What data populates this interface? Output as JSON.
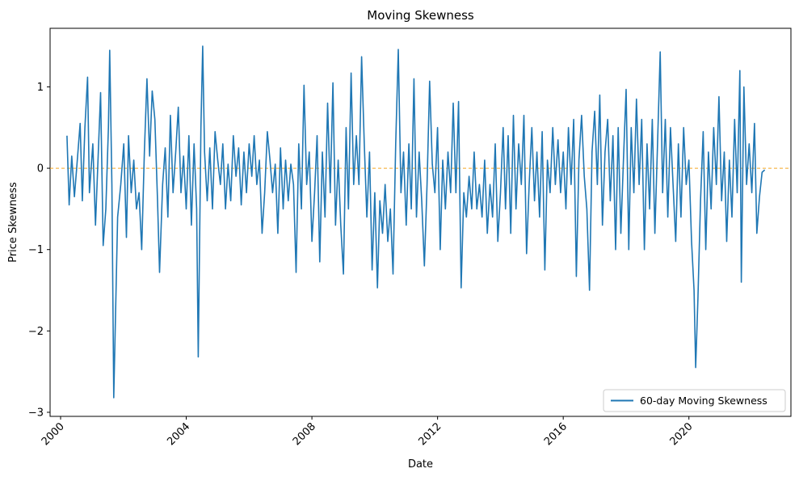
{
  "chart_data": {
    "type": "line",
    "title": "Moving Skewness",
    "xlabel": "Date",
    "ylabel": "Price Skewness",
    "xlim": [
      "1999-09-01",
      "2023-04-01"
    ],
    "ylim": [
      -3.05,
      1.72
    ],
    "x_ticks": [
      {
        "date": "2000-01-01",
        "label": "2000"
      },
      {
        "date": "2004-01-01",
        "label": "2004"
      },
      {
        "date": "2008-01-01",
        "label": "2008"
      },
      {
        "date": "2012-01-01",
        "label": "2012"
      },
      {
        "date": "2016-01-01",
        "label": "2016"
      },
      {
        "date": "2020-01-01",
        "label": "2020"
      }
    ],
    "y_ticks": [
      {
        "value": 1,
        "label": "1"
      },
      {
        "value": 0,
        "label": "0"
      },
      {
        "value": -1,
        "label": "−1"
      },
      {
        "value": -2,
        "label": "−2"
      },
      {
        "value": -3,
        "label": "−3"
      }
    ],
    "grid": false,
    "legend_position": "lower-right",
    "reference_line": {
      "y": 0,
      "style": "dashed",
      "color": "#f5a623"
    },
    "series": [
      {
        "name": "60-day Moving Skewness",
        "color": "#1f77b4",
        "points": [
          [
            "2000-03-15",
            0.4
          ],
          [
            "2000-04-10",
            -0.45
          ],
          [
            "2000-05-10",
            0.15
          ],
          [
            "2000-06-10",
            -0.35
          ],
          [
            "2000-07-10",
            0.05
          ],
          [
            "2000-08-15",
            0.55
          ],
          [
            "2000-09-10",
            -0.4
          ],
          [
            "2000-10-10",
            0.5
          ],
          [
            "2000-11-10",
            1.12
          ],
          [
            "2000-12-01",
            -0.3
          ],
          [
            "2001-01-10",
            0.3
          ],
          [
            "2001-02-10",
            -0.7
          ],
          [
            "2001-03-15",
            0.2
          ],
          [
            "2001-04-10",
            0.93
          ],
          [
            "2001-05-10",
            -0.95
          ],
          [
            "2001-06-10",
            -0.5
          ],
          [
            "2001-07-10",
            0.5
          ],
          [
            "2001-07-25",
            1.45
          ],
          [
            "2001-08-20",
            -0.2
          ],
          [
            "2001-09-10",
            -2.82
          ],
          [
            "2001-10-01",
            -1.8
          ],
          [
            "2001-10-25",
            -0.6
          ],
          [
            "2001-12-01",
            -0.2
          ],
          [
            "2002-01-05",
            0.3
          ],
          [
            "2002-02-05",
            -0.85
          ],
          [
            "2002-03-01",
            0.4
          ],
          [
            "2002-04-01",
            -0.3
          ],
          [
            "2002-05-01",
            0.1
          ],
          [
            "2002-06-01",
            -0.5
          ],
          [
            "2002-07-01",
            -0.3
          ],
          [
            "2002-08-01",
            -1.0
          ],
          [
            "2002-09-01",
            0.2
          ],
          [
            "2002-10-01",
            1.1
          ],
          [
            "2002-11-01",
            0.15
          ],
          [
            "2002-12-01",
            0.95
          ],
          [
            "2003-01-01",
            0.6
          ],
          [
            "2003-02-01",
            -0.4
          ],
          [
            "2003-02-25",
            -1.28
          ],
          [
            "2003-04-01",
            -0.2
          ],
          [
            "2003-05-01",
            0.25
          ],
          [
            "2003-06-01",
            -0.6
          ],
          [
            "2003-07-01",
            0.65
          ],
          [
            "2003-08-01",
            -0.3
          ],
          [
            "2003-09-01",
            0.2
          ],
          [
            "2003-10-01",
            0.75
          ],
          [
            "2003-11-01",
            -0.3
          ],
          [
            "2003-12-01",
            0.15
          ],
          [
            "2004-01-01",
            -0.5
          ],
          [
            "2004-02-01",
            0.4
          ],
          [
            "2004-03-01",
            -0.7
          ],
          [
            "2004-04-01",
            0.3
          ],
          [
            "2004-05-01",
            -0.5
          ],
          [
            "2004-05-20",
            -2.32
          ],
          [
            "2004-06-20",
            0.5
          ],
          [
            "2004-07-10",
            1.5
          ],
          [
            "2004-08-01",
            0.2
          ],
          [
            "2004-09-01",
            -0.4
          ],
          [
            "2004-10-01",
            0.25
          ],
          [
            "2004-11-01",
            -0.5
          ],
          [
            "2004-12-01",
            0.45
          ],
          [
            "2005-01-01",
            0.1
          ],
          [
            "2005-02-01",
            -0.2
          ],
          [
            "2005-03-01",
            0.3
          ],
          [
            "2005-04-01",
            -0.5
          ],
          [
            "2005-05-01",
            0.05
          ],
          [
            "2005-06-01",
            -0.4
          ],
          [
            "2005-07-01",
            0.4
          ],
          [
            "2005-08-01",
            -0.1
          ],
          [
            "2005-09-01",
            0.25
          ],
          [
            "2005-10-01",
            -0.45
          ],
          [
            "2005-11-01",
            0.2
          ],
          [
            "2005-12-01",
            -0.3
          ],
          [
            "2006-01-01",
            0.3
          ],
          [
            "2006-02-01",
            -0.1
          ],
          [
            "2006-03-01",
            0.4
          ],
          [
            "2006-04-01",
            -0.2
          ],
          [
            "2006-05-01",
            0.1
          ],
          [
            "2006-06-01",
            -0.8
          ],
          [
            "2006-07-01",
            -0.3
          ],
          [
            "2006-08-01",
            0.45
          ],
          [
            "2006-09-01",
            0.1
          ],
          [
            "2006-10-01",
            -0.3
          ],
          [
            "2006-11-01",
            0.05
          ],
          [
            "2006-12-01",
            -0.8
          ],
          [
            "2007-01-01",
            0.25
          ],
          [
            "2007-02-01",
            -0.5
          ],
          [
            "2007-03-01",
            0.1
          ],
          [
            "2007-04-01",
            -0.4
          ],
          [
            "2007-05-01",
            0.05
          ],
          [
            "2007-06-01",
            -0.2
          ],
          [
            "2007-07-01",
            -1.28
          ],
          [
            "2007-08-01",
            0.3
          ],
          [
            "2007-09-01",
            -0.5
          ],
          [
            "2007-10-01",
            1.02
          ],
          [
            "2007-11-01",
            -0.2
          ],
          [
            "2007-12-01",
            0.2
          ],
          [
            "2008-01-01",
            -0.9
          ],
          [
            "2008-02-01",
            -0.3
          ],
          [
            "2008-03-01",
            0.4
          ],
          [
            "2008-04-01",
            -1.15
          ],
          [
            "2008-05-01",
            0.2
          ],
          [
            "2008-06-01",
            -0.6
          ],
          [
            "2008-07-01",
            0.8
          ],
          [
            "2008-08-01",
            -0.3
          ],
          [
            "2008-09-01",
            1.05
          ],
          [
            "2008-10-01",
            -0.7
          ],
          [
            "2008-11-01",
            0.1
          ],
          [
            "2008-12-01",
            -0.7
          ],
          [
            "2009-01-01",
            -1.3
          ],
          [
            "2009-02-01",
            0.5
          ],
          [
            "2009-03-01",
            -0.5
          ],
          [
            "2009-04-01",
            1.17
          ],
          [
            "2009-05-01",
            -0.2
          ],
          [
            "2009-06-01",
            0.4
          ],
          [
            "2009-07-01",
            -0.2
          ],
          [
            "2009-08-01",
            1.37
          ],
          [
            "2009-09-01",
            0.3
          ],
          [
            "2009-10-01",
            -0.6
          ],
          [
            "2009-11-01",
            0.2
          ],
          [
            "2009-12-01",
            -1.25
          ],
          [
            "2010-01-01",
            -0.3
          ],
          [
            "2010-02-01",
            -1.47
          ],
          [
            "2010-03-01",
            -0.4
          ],
          [
            "2010-04-01",
            -0.8
          ],
          [
            "2010-05-01",
            -0.2
          ],
          [
            "2010-06-01",
            -0.9
          ],
          [
            "2010-07-01",
            -0.5
          ],
          [
            "2010-08-01",
            -1.3
          ],
          [
            "2010-09-01",
            0.3
          ],
          [
            "2010-10-01",
            1.46
          ],
          [
            "2010-11-01",
            -0.3
          ],
          [
            "2010-12-01",
            0.2
          ],
          [
            "2011-01-01",
            -0.7
          ],
          [
            "2011-02-01",
            0.3
          ],
          [
            "2011-03-01",
            -0.5
          ],
          [
            "2011-04-01",
            1.1
          ],
          [
            "2011-05-01",
            -0.6
          ],
          [
            "2011-06-01",
            0.2
          ],
          [
            "2011-07-01",
            -0.4
          ],
          [
            "2011-08-01",
            -1.2
          ],
          [
            "2011-09-01",
            -0.2
          ],
          [
            "2011-10-01",
            1.07
          ],
          [
            "2011-11-01",
            0.05
          ],
          [
            "2011-12-01",
            -0.3
          ],
          [
            "2012-01-01",
            0.5
          ],
          [
            "2012-02-01",
            -1.0
          ],
          [
            "2012-03-01",
            0.1
          ],
          [
            "2012-04-01",
            -0.5
          ],
          [
            "2012-05-01",
            0.2
          ],
          [
            "2012-06-01",
            -0.3
          ],
          [
            "2012-07-01",
            0.8
          ],
          [
            "2012-08-01",
            -0.3
          ],
          [
            "2012-09-01",
            0.82
          ],
          [
            "2012-10-01",
            -1.47
          ],
          [
            "2012-11-01",
            -0.3
          ],
          [
            "2012-12-01",
            -0.6
          ],
          [
            "2013-01-01",
            -0.1
          ],
          [
            "2013-02-01",
            -0.5
          ],
          [
            "2013-03-01",
            0.2
          ],
          [
            "2013-04-01",
            -0.5
          ],
          [
            "2013-05-01",
            -0.2
          ],
          [
            "2013-06-01",
            -0.6
          ],
          [
            "2013-07-01",
            0.1
          ],
          [
            "2013-08-01",
            -0.8
          ],
          [
            "2013-09-01",
            -0.2
          ],
          [
            "2013-10-01",
            -0.6
          ],
          [
            "2013-11-01",
            0.3
          ],
          [
            "2013-12-01",
            -0.9
          ],
          [
            "2014-01-01",
            -0.3
          ],
          [
            "2014-02-01",
            0.5
          ],
          [
            "2014-03-01",
            -0.5
          ],
          [
            "2014-04-01",
            0.4
          ],
          [
            "2014-05-01",
            -0.8
          ],
          [
            "2014-06-01",
            0.65
          ],
          [
            "2014-07-01",
            -0.5
          ],
          [
            "2014-08-01",
            0.3
          ],
          [
            "2014-09-01",
            -0.2
          ],
          [
            "2014-10-01",
            0.65
          ],
          [
            "2014-11-01",
            -1.05
          ],
          [
            "2014-12-01",
            -0.2
          ],
          [
            "2015-01-01",
            0.5
          ],
          [
            "2015-02-01",
            -0.4
          ],
          [
            "2015-03-01",
            0.2
          ],
          [
            "2015-04-01",
            -0.6
          ],
          [
            "2015-05-01",
            0.45
          ],
          [
            "2015-06-01",
            -1.25
          ],
          [
            "2015-07-01",
            0.1
          ],
          [
            "2015-08-01",
            -0.3
          ],
          [
            "2015-09-01",
            0.5
          ],
          [
            "2015-10-01",
            -0.2
          ],
          [
            "2015-11-01",
            0.35
          ],
          [
            "2015-12-01",
            -0.3
          ],
          [
            "2016-01-01",
            0.2
          ],
          [
            "2016-02-01",
            -0.5
          ],
          [
            "2016-03-01",
            0.5
          ],
          [
            "2016-04-01",
            -0.2
          ],
          [
            "2016-05-01",
            0.6
          ],
          [
            "2016-06-01",
            -1.33
          ],
          [
            "2016-07-01",
            0.1
          ],
          [
            "2016-08-01",
            0.65
          ],
          [
            "2016-09-01",
            -0.1
          ],
          [
            "2016-10-01",
            -0.5
          ],
          [
            "2016-11-01",
            -1.5
          ],
          [
            "2016-12-01",
            0.2
          ],
          [
            "2017-01-01",
            0.7
          ],
          [
            "2017-02-01",
            -0.2
          ],
          [
            "2017-03-01",
            0.9
          ],
          [
            "2017-04-01",
            -0.7
          ],
          [
            "2017-05-01",
            0.2
          ],
          [
            "2017-06-01",
            0.6
          ],
          [
            "2017-07-01",
            -0.4
          ],
          [
            "2017-08-01",
            0.4
          ],
          [
            "2017-09-01",
            -1.0
          ],
          [
            "2017-10-01",
            0.5
          ],
          [
            "2017-11-01",
            -0.8
          ],
          [
            "2017-12-01",
            0.1
          ],
          [
            "2018-01-01",
            0.97
          ],
          [
            "2018-02-01",
            -1.0
          ],
          [
            "2018-03-01",
            0.5
          ],
          [
            "2018-04-01",
            -0.3
          ],
          [
            "2018-05-01",
            0.85
          ],
          [
            "2018-06-01",
            -0.2
          ],
          [
            "2018-07-01",
            0.6
          ],
          [
            "2018-08-01",
            -1.0
          ],
          [
            "2018-09-01",
            0.3
          ],
          [
            "2018-10-01",
            -0.5
          ],
          [
            "2018-11-01",
            0.6
          ],
          [
            "2018-12-01",
            -0.8
          ],
          [
            "2019-01-01",
            0.3
          ],
          [
            "2019-02-01",
            1.43
          ],
          [
            "2019-03-01",
            -0.3
          ],
          [
            "2019-04-01",
            0.6
          ],
          [
            "2019-05-01",
            -0.6
          ],
          [
            "2019-06-01",
            0.5
          ],
          [
            "2019-07-01",
            -0.2
          ],
          [
            "2019-08-01",
            -0.9
          ],
          [
            "2019-09-01",
            0.3
          ],
          [
            "2019-10-01",
            -0.6
          ],
          [
            "2019-11-01",
            0.5
          ],
          [
            "2019-12-01",
            -0.2
          ],
          [
            "2020-01-01",
            0.1
          ],
          [
            "2020-02-01",
            -0.9
          ],
          [
            "2020-03-01",
            -1.5
          ],
          [
            "2020-03-20",
            -2.45
          ],
          [
            "2020-04-15",
            -1.6
          ],
          [
            "2020-05-15",
            -0.4
          ],
          [
            "2020-06-15",
            0.45
          ],
          [
            "2020-07-15",
            -1.0
          ],
          [
            "2020-08-15",
            0.2
          ],
          [
            "2020-09-15",
            -0.5
          ],
          [
            "2020-10-15",
            0.5
          ],
          [
            "2020-11-15",
            -0.2
          ],
          [
            "2020-12-15",
            0.88
          ],
          [
            "2021-01-15",
            -0.4
          ],
          [
            "2021-02-15",
            0.2
          ],
          [
            "2021-03-15",
            -0.9
          ],
          [
            "2021-04-15",
            0.1
          ],
          [
            "2021-05-15",
            -0.6
          ],
          [
            "2021-06-15",
            0.6
          ],
          [
            "2021-07-15",
            -0.3
          ],
          [
            "2021-08-15",
            1.2
          ],
          [
            "2021-09-01",
            -1.4
          ],
          [
            "2021-10-01",
            1.0
          ],
          [
            "2021-11-01",
            -0.2
          ],
          [
            "2021-12-01",
            0.3
          ],
          [
            "2022-01-01",
            -0.3
          ],
          [
            "2022-02-01",
            0.55
          ],
          [
            "2022-03-01",
            -0.8
          ],
          [
            "2022-04-01",
            -0.35
          ],
          [
            "2022-05-01",
            -0.05
          ],
          [
            "2022-06-01",
            -0.02
          ]
        ]
      }
    ]
  }
}
